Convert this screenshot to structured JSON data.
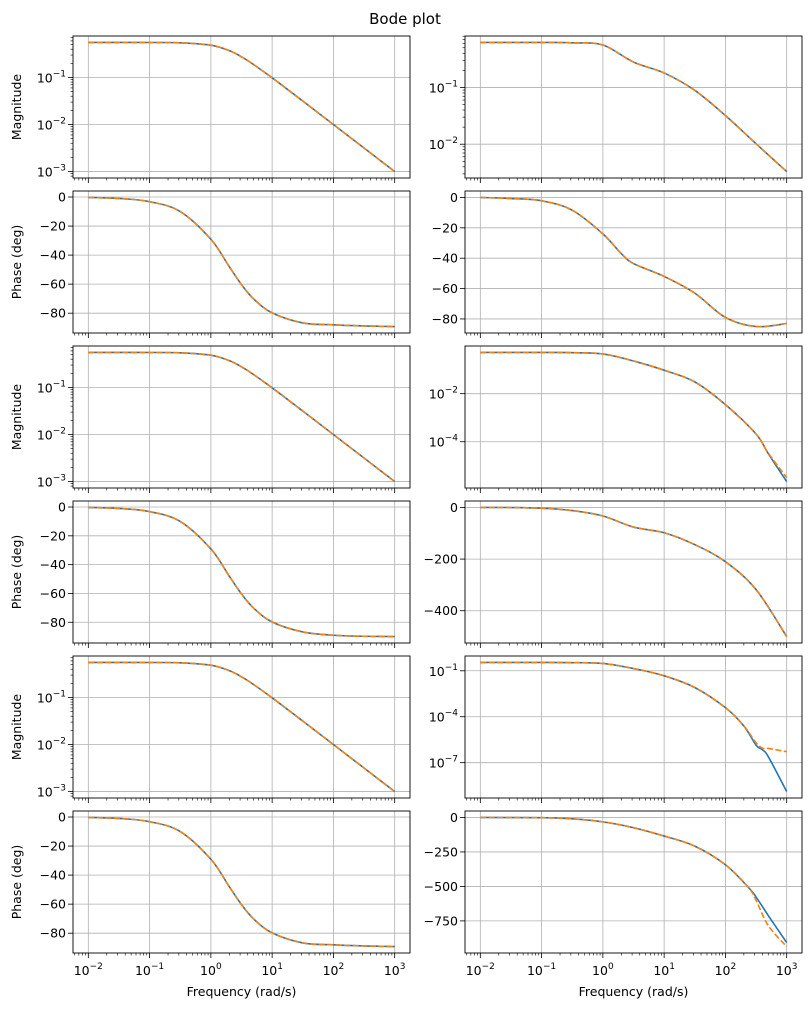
{
  "figure": {
    "title": "Bode plot",
    "colors": {
      "series1": "#1f77b4",
      "series2": "#ff7f0e",
      "grid": "#b0b0b0"
    }
  },
  "chart_data": [
    {
      "type": "line",
      "row": 0,
      "col": 0,
      "yscale": "log",
      "ylabel": "Magnitude",
      "xlabel": "",
      "xlim": [
        0.01,
        1000
      ],
      "yticks": [
        0.1,
        0.01,
        0.001
      ],
      "minor_y": true,
      "series": [
        {
          "name": "blue",
          "style": "solid",
          "x": [
            0.01,
            0.0316,
            0.1,
            0.316,
            1,
            2,
            3.16,
            5,
            10,
            31.6,
            100,
            316,
            1000
          ],
          "y": [
            0.556,
            0.556,
            0.555,
            0.547,
            0.486,
            0.372,
            0.275,
            0.188,
            0.0984,
            0.0316,
            0.01,
            0.00316,
            0.001
          ]
        },
        {
          "name": "orange",
          "style": "dashed",
          "x": [
            0.01,
            0.0316,
            0.1,
            0.316,
            1,
            2,
            3.16,
            5,
            10,
            31.6,
            100,
            316,
            1000
          ],
          "y": [
            0.556,
            0.556,
            0.555,
            0.547,
            0.486,
            0.372,
            0.275,
            0.188,
            0.0984,
            0.0316,
            0.01,
            0.00316,
            0.001
          ]
        }
      ]
    },
    {
      "type": "line",
      "row": 0,
      "col": 1,
      "yscale": "log",
      "ylabel": "",
      "xlabel": "",
      "xlim": [
        0.01,
        1000
      ],
      "yticks": [
        0.1,
        0.01
      ],
      "minor_y": true,
      "series": [
        {
          "name": "blue",
          "style": "solid",
          "x": [
            0.01,
            0.1,
            0.316,
            1,
            3.16,
            10,
            31.6,
            100,
            316,
            1000
          ],
          "y": [
            0.62,
            0.62,
            0.61,
            0.56,
            0.28,
            0.18,
            0.089,
            0.032,
            0.0102,
            0.0033
          ]
        },
        {
          "name": "orange",
          "style": "dashed",
          "x": [
            0.01,
            0.1,
            0.316,
            1,
            3.16,
            10,
            31.6,
            100,
            316,
            1000
          ],
          "y": [
            0.62,
            0.62,
            0.61,
            0.56,
            0.28,
            0.18,
            0.089,
            0.032,
            0.0102,
            0.0033
          ]
        }
      ]
    },
    {
      "type": "line",
      "row": 1,
      "col": 0,
      "yscale": "linear",
      "ylabel": "Phase (deg)",
      "xlabel": "",
      "xlim": [
        0.01,
        1000
      ],
      "yticks": [
        0,
        -20,
        -40,
        -60,
        -80
      ],
      "series": [
        {
          "name": "blue",
          "style": "solid",
          "x": [
            0.01,
            0.0316,
            0.1,
            0.316,
            1,
            2,
            3.16,
            5,
            10,
            31.6,
            100,
            316,
            1000
          ],
          "y": [
            -0.3,
            -1.0,
            -3.2,
            -10.0,
            -29.1,
            -48.0,
            -60.3,
            -70.2,
            -79.8,
            -86.7,
            -88.0,
            -88.8,
            -89.2
          ]
        },
        {
          "name": "orange",
          "style": "dashed",
          "x": [
            0.01,
            0.0316,
            0.1,
            0.316,
            1,
            2,
            3.16,
            5,
            10,
            31.6,
            100,
            316,
            1000
          ],
          "y": [
            -0.3,
            -1.0,
            -3.2,
            -10.0,
            -29.1,
            -48.0,
            -60.3,
            -70.2,
            -79.8,
            -86.7,
            -88.0,
            -88.8,
            -89.2
          ]
        }
      ]
    },
    {
      "type": "line",
      "row": 1,
      "col": 1,
      "yscale": "linear",
      "ylabel": "",
      "xlabel": "",
      "xlim": [
        0.01,
        1000
      ],
      "yticks": [
        0,
        -20,
        -40,
        -60,
        -80
      ],
      "series": [
        {
          "name": "blue",
          "style": "solid",
          "x": [
            0.01,
            0.0316,
            0.1,
            0.316,
            1,
            2,
            3.16,
            10,
            31.6,
            100,
            316,
            1000
          ],
          "y": [
            0,
            -0.7,
            -2.2,
            -8.4,
            -24,
            -37,
            -43.5,
            -52,
            -63,
            -79,
            -85,
            -83
          ]
        },
        {
          "name": "orange",
          "style": "dashed",
          "x": [
            0.01,
            0.0316,
            0.1,
            0.316,
            1,
            2,
            3.16,
            10,
            31.6,
            100,
            316,
            1000
          ],
          "y": [
            0,
            -0.7,
            -2.2,
            -8.4,
            -24,
            -37,
            -43.5,
            -52,
            -63,
            -79,
            -85,
            -83
          ]
        }
      ]
    },
    {
      "type": "line",
      "row": 2,
      "col": 0,
      "yscale": "log",
      "ylabel": "Magnitude",
      "xlabel": "",
      "xlim": [
        0.01,
        1000
      ],
      "yticks": [
        0.1,
        0.01,
        0.001
      ],
      "minor_y": true,
      "series": [
        {
          "name": "blue",
          "style": "solid",
          "x": [
            0.01,
            0.0316,
            0.1,
            0.316,
            1,
            2,
            3.16,
            5,
            10,
            31.6,
            100,
            316,
            1000
          ],
          "y": [
            0.556,
            0.556,
            0.555,
            0.547,
            0.486,
            0.372,
            0.275,
            0.188,
            0.0984,
            0.0316,
            0.01,
            0.00316,
            0.001
          ]
        },
        {
          "name": "orange",
          "style": "dashed",
          "x": [
            0.01,
            0.0316,
            0.1,
            0.316,
            1,
            2,
            3.16,
            5,
            10,
            31.6,
            100,
            316,
            1000
          ],
          "y": [
            0.556,
            0.556,
            0.555,
            0.547,
            0.486,
            0.372,
            0.275,
            0.188,
            0.0984,
            0.0316,
            0.01,
            0.00316,
            0.001
          ]
        }
      ]
    },
    {
      "type": "line",
      "row": 2,
      "col": 1,
      "yscale": "log",
      "ylabel": "",
      "xlabel": "",
      "xlim": [
        0.01,
        1000
      ],
      "yticks": [
        0.01,
        0.0001
      ],
      "minor_y": false,
      "series": [
        {
          "name": "blue",
          "style": "solid",
          "x": [
            0.01,
            0.1,
            0.316,
            1,
            3.16,
            10,
            31.6,
            100,
            316,
            500,
            1000
          ],
          "y": [
            0.52,
            0.52,
            0.51,
            0.45,
            0.23,
            0.095,
            0.031,
            0.0035,
            0.00021,
            3.2e-05,
            2.2e-06
          ]
        },
        {
          "name": "orange",
          "style": "dashed",
          "x": [
            0.01,
            0.1,
            0.316,
            1,
            3.16,
            10,
            31.6,
            100,
            316,
            500,
            1000
          ],
          "y": [
            0.52,
            0.52,
            0.51,
            0.45,
            0.23,
            0.095,
            0.031,
            0.0035,
            0.00021,
            3.4e-05,
            3.2e-06
          ]
        }
      ]
    },
    {
      "type": "line",
      "row": 3,
      "col": 0,
      "yscale": "linear",
      "ylabel": "Phase (deg)",
      "xlabel": "",
      "xlim": [
        0.01,
        1000
      ],
      "yticks": [
        0,
        -20,
        -40,
        -60,
        -80
      ],
      "series": [
        {
          "name": "blue",
          "style": "solid",
          "x": [
            0.01,
            0.0316,
            0.1,
            0.316,
            1,
            2,
            3.16,
            5,
            10,
            31.6,
            100,
            316,
            1000
          ],
          "y": [
            -0.3,
            -1.0,
            -3.2,
            -10.0,
            -29.1,
            -48.0,
            -60.3,
            -70.2,
            -79.8,
            -86.7,
            -89.0,
            -89.7,
            -89.9
          ]
        },
        {
          "name": "orange",
          "style": "dashed",
          "x": [
            0.01,
            0.0316,
            0.1,
            0.316,
            1,
            2,
            3.16,
            5,
            10,
            31.6,
            100,
            316,
            1000
          ],
          "y": [
            -0.3,
            -1.0,
            -3.2,
            -10.0,
            -29.1,
            -48.0,
            -60.3,
            -70.2,
            -79.8,
            -86.7,
            -89.0,
            -89.7,
            -89.9
          ]
        }
      ]
    },
    {
      "type": "line",
      "row": 3,
      "col": 1,
      "yscale": "linear",
      "ylabel": "",
      "xlabel": "",
      "xlim": [
        0.01,
        1000
      ],
      "yticks": [
        0,
        -200,
        -400
      ],
      "series": [
        {
          "name": "blue",
          "style": "solid",
          "x": [
            0.01,
            0.0316,
            0.1,
            0.316,
            1,
            3.16,
            10,
            31.6,
            100,
            316,
            1000
          ],
          "y": [
            0,
            -0.3,
            -3,
            -12,
            -33,
            -76,
            -98,
            -144,
            -210,
            -318,
            -500
          ]
        },
        {
          "name": "orange",
          "style": "dashed",
          "x": [
            0.01,
            0.0316,
            0.1,
            0.316,
            1,
            3.16,
            10,
            31.6,
            100,
            316,
            1000
          ],
          "y": [
            0,
            -0.3,
            -3,
            -12,
            -33,
            -76,
            -98,
            -144,
            -210,
            -318,
            -500
          ]
        }
      ]
    },
    {
      "type": "line",
      "row": 4,
      "col": 0,
      "yscale": "log",
      "ylabel": "Magnitude",
      "xlabel": "",
      "xlim": [
        0.01,
        1000
      ],
      "yticks": [
        0.1,
        0.01,
        0.001
      ],
      "minor_y": true,
      "series": [
        {
          "name": "blue",
          "style": "solid",
          "x": [
            0.01,
            0.0316,
            0.1,
            0.316,
            1,
            2,
            3.16,
            5,
            10,
            31.6,
            100,
            316,
            1000
          ],
          "y": [
            0.556,
            0.556,
            0.555,
            0.547,
            0.486,
            0.372,
            0.275,
            0.188,
            0.0984,
            0.0316,
            0.01,
            0.00316,
            0.001
          ]
        },
        {
          "name": "orange",
          "style": "dashed",
          "x": [
            0.01,
            0.0316,
            0.1,
            0.316,
            1,
            2,
            3.16,
            5,
            10,
            31.6,
            100,
            316,
            1000
          ],
          "y": [
            0.556,
            0.556,
            0.555,
            0.547,
            0.486,
            0.372,
            0.275,
            0.188,
            0.0984,
            0.0316,
            0.01,
            0.00316,
            0.001
          ]
        }
      ]
    },
    {
      "type": "line",
      "row": 4,
      "col": 1,
      "yscale": "log",
      "ylabel": "",
      "xlabel": "",
      "xlim": [
        0.01,
        1000
      ],
      "yticks": [
        0.1,
        0.0001,
        1e-07
      ],
      "minor_y": false,
      "series": [
        {
          "name": "blue",
          "style": "solid",
          "x": [
            0.01,
            0.1,
            0.316,
            1,
            3.16,
            10,
            31.6,
            100,
            200,
            316,
            400,
            500,
            1000
          ],
          "y": [
            0.35,
            0.35,
            0.34,
            0.3,
            0.14,
            0.047,
            0.0081,
            0.00039,
            2.5e-05,
            1.4e-06,
            7e-07,
            2.5e-07,
            1.3e-09
          ]
        },
        {
          "name": "orange",
          "style": "dashed",
          "x": [
            0.01,
            0.1,
            0.316,
            1,
            3.16,
            10,
            31.6,
            100,
            200,
            316,
            400,
            500,
            1000
          ],
          "y": [
            0.35,
            0.35,
            0.34,
            0.3,
            0.14,
            0.047,
            0.0081,
            0.00039,
            2.5e-05,
            2e-06,
            9e-07,
            8.5e-07,
            5.2e-07
          ]
        }
      ]
    },
    {
      "type": "line",
      "row": 5,
      "col": 0,
      "yscale": "linear",
      "ylabel": "Phase (deg)",
      "xlabel": "Frequency (rad/s)",
      "xlim": [
        0.01,
        1000
      ],
      "yticks": [
        0,
        -20,
        -40,
        -60,
        -80
      ],
      "series": [
        {
          "name": "blue",
          "style": "solid",
          "x": [
            0.01,
            0.0316,
            0.1,
            0.316,
            1,
            2,
            3.16,
            5,
            10,
            31.6,
            100,
            316,
            1000
          ],
          "y": [
            -0.3,
            -1.0,
            -3.2,
            -10.0,
            -29.1,
            -48.0,
            -60.3,
            -70.2,
            -79.8,
            -86.7,
            -88.0,
            -88.8,
            -89.2
          ]
        },
        {
          "name": "orange",
          "style": "dashed",
          "x": [
            0.01,
            0.0316,
            0.1,
            0.316,
            1,
            2,
            3.16,
            5,
            10,
            31.6,
            100,
            316,
            1000
          ],
          "y": [
            -0.3,
            -1.0,
            -3.2,
            -10.0,
            -29.1,
            -48.0,
            -60.3,
            -70.2,
            -79.8,
            -86.7,
            -88.0,
            -88.8,
            -89.2
          ]
        }
      ]
    },
    {
      "type": "line",
      "row": 5,
      "col": 1,
      "yscale": "linear",
      "ylabel": "",
      "xlabel": "Frequency (rad/s)",
      "xlim": [
        0.01,
        1000
      ],
      "yticks": [
        0,
        -250,
        -500,
        -750
      ],
      "series": [
        {
          "name": "blue",
          "style": "solid",
          "x": [
            0.01,
            0.1,
            0.316,
            1,
            3.16,
            10,
            31.6,
            100,
            237,
            316,
            500,
            1000
          ],
          "y": [
            0,
            -2,
            -10,
            -32,
            -74,
            -135,
            -208,
            -343,
            -507,
            -576,
            -711,
            -907
          ]
        },
        {
          "name": "orange",
          "style": "dashed",
          "x": [
            0.01,
            0.1,
            0.316,
            1,
            3.16,
            10,
            31.6,
            100,
            237,
            316,
            500,
            1000
          ],
          "y": [
            0,
            -2,
            -10,
            -32,
            -74,
            -135,
            -208,
            -343,
            -507,
            -600,
            -784,
            -936
          ]
        }
      ]
    }
  ]
}
